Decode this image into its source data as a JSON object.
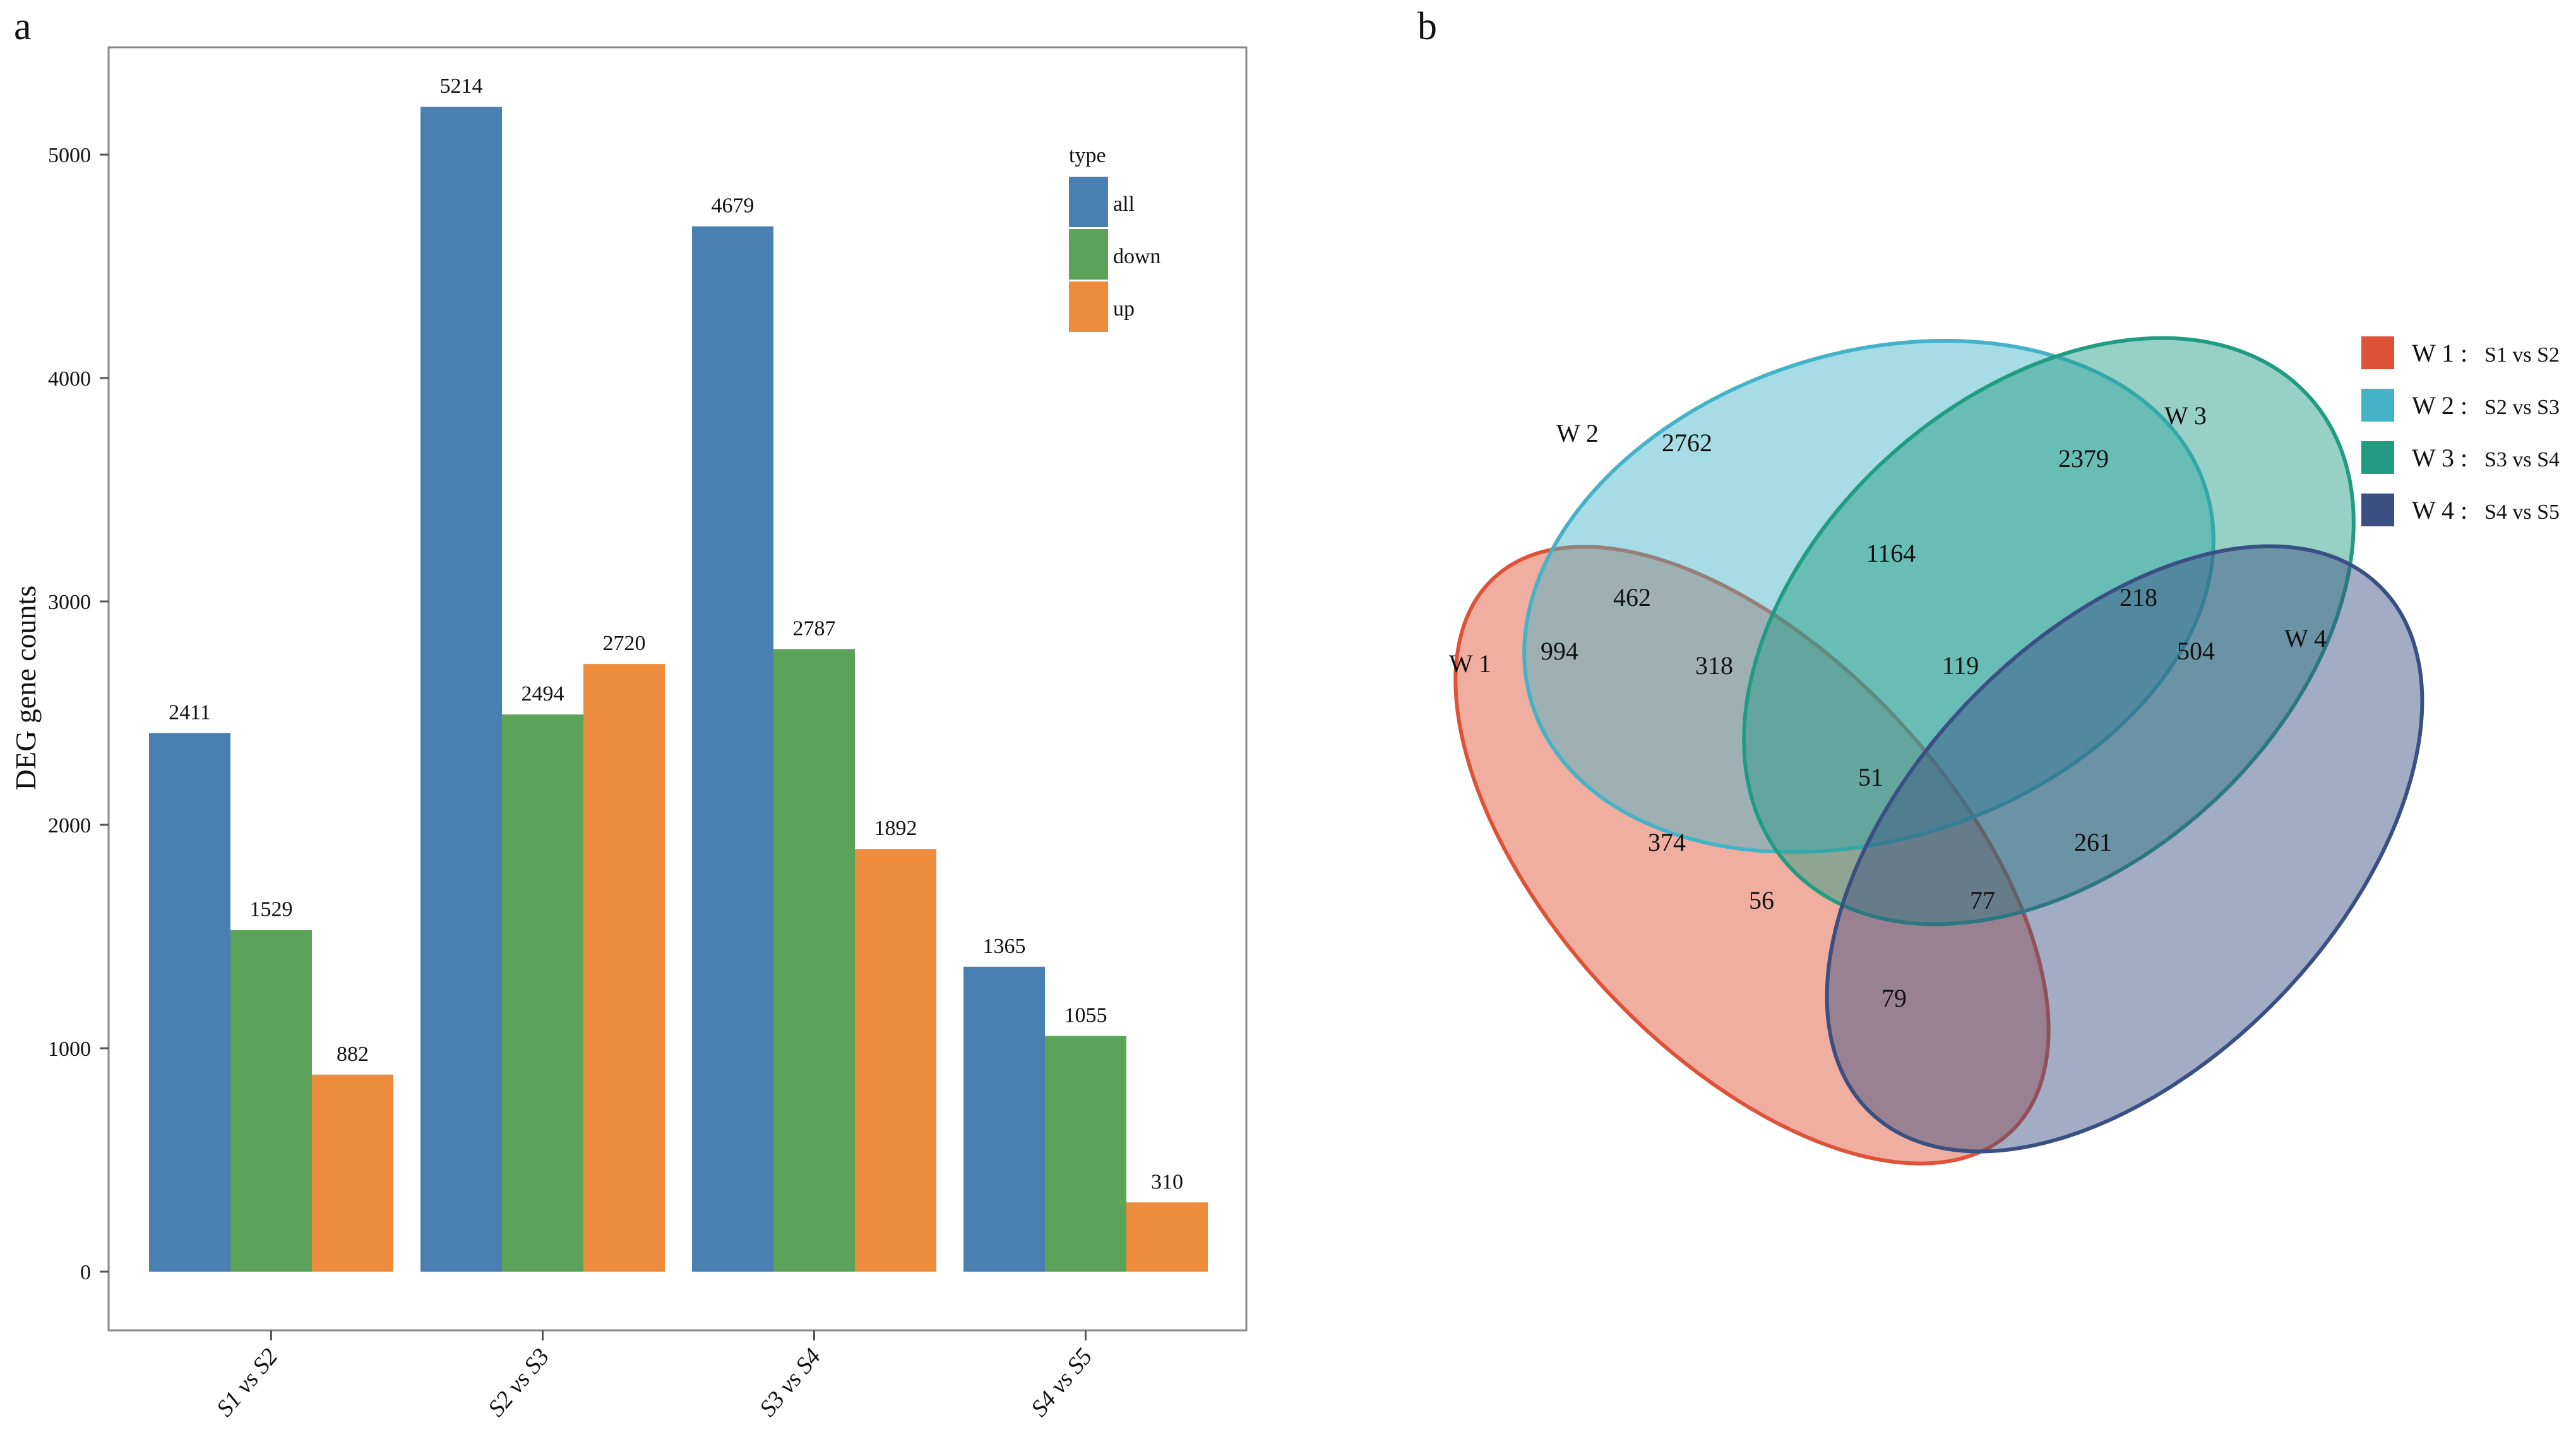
{
  "panels": {
    "a_label": "a",
    "b_label": "b"
  },
  "chart_data": [
    {
      "type": "bar",
      "title": "",
      "xlabel": "",
      "ylabel": "DEG gene counts",
      "ylim": [
        0,
        5500
      ],
      "yticks": [
        0,
        1000,
        2000,
        3000,
        4000,
        5000
      ],
      "grid": false,
      "categories": [
        "S1 vs S2",
        "S2 vs S3",
        "S3 vs S4",
        "S4 vs  S5"
      ],
      "legend_title": "type",
      "legend_position": "top-right",
      "series": [
        {
          "name": "all",
          "color": "#4A7FB1",
          "values": [
            2411,
            5214,
            4679,
            1365
          ]
        },
        {
          "name": "down",
          "color": "#5BA358",
          "values": [
            1529,
            2494,
            2787,
            1055
          ]
        },
        {
          "name": "up",
          "color": "#EE8C3E",
          "values": [
            882,
            2720,
            1892,
            310
          ]
        }
      ]
    },
    {
      "type": "venn",
      "sets": [
        {
          "name": "W 1",
          "key": "W 1 :",
          "desc": "S1 vs S2",
          "color": "#E05238"
        },
        {
          "name": "W 2",
          "key": "W 2 :",
          "desc": "S2 vs S3",
          "color": "#44B3C8"
        },
        {
          "name": "W 3",
          "key": "W 3 :",
          "desc": "S3 vs S4",
          "color": "#219C83"
        },
        {
          "name": "W 4",
          "key": "W 4 :",
          "desc": "S4 vs S5",
          "color": "#3A4F82"
        }
      ],
      "regions": [
        {
          "sets": [
            "W1"
          ],
          "value": "994"
        },
        {
          "sets": [
            "W2"
          ],
          "value": "2762"
        },
        {
          "sets": [
            "W3"
          ],
          "value": "2379"
        },
        {
          "sets": [
            "W4"
          ],
          "value": "504"
        },
        {
          "sets": [
            "W2",
            "W3"
          ],
          "value": "1164"
        },
        {
          "sets": [
            "W1",
            "W2"
          ],
          "value": "462"
        },
        {
          "sets": [
            "W3",
            "W4"
          ],
          "value": "218"
        },
        {
          "sets": [
            "W1",
            "W2",
            "W3"
          ],
          "value": "318"
        },
        {
          "sets": [
            "W2",
            "W3",
            "W4"
          ],
          "value": "119"
        },
        {
          "sets": [
            "W1",
            "W2",
            "W3",
            "W4"
          ],
          "value": "51"
        },
        {
          "sets": [
            "W1",
            "W3"
          ],
          "value": "374"
        },
        {
          "sets": [
            "W2",
            "W4"
          ],
          "value": "261"
        },
        {
          "sets": [
            "W1",
            "W3",
            "W4"
          ],
          "value": "56"
        },
        {
          "sets": [
            "W1",
            "W2",
            "W4"
          ],
          "value": "77"
        },
        {
          "sets": [
            "W1",
            "W4"
          ],
          "value": "79"
        }
      ]
    }
  ]
}
